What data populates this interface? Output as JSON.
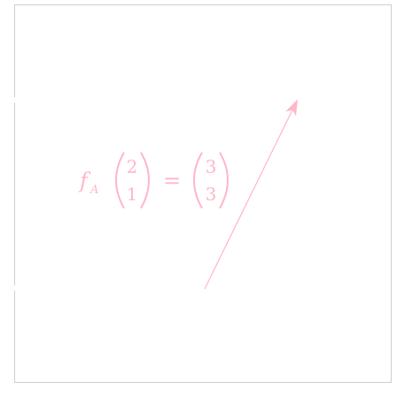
{
  "diagram": {
    "function_symbol": "f",
    "function_subscript": "A",
    "input_vector": [
      "2",
      "1"
    ],
    "equals": "=",
    "output_vector": [
      "3",
      "3"
    ],
    "color": "#ffb6c8",
    "frame_color": "#cfcfcf",
    "arrow": "vector-arrow"
  }
}
